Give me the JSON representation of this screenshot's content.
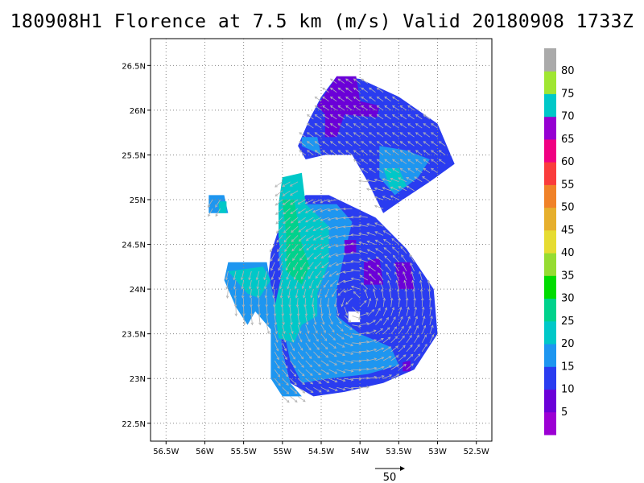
{
  "title": "180908H1 Florence at 7.5 km (m/s) Valid 20180908 1733Z",
  "chart_data": {
    "type": "heatmap",
    "title": "180908H1 Florence at 7.5 km (m/s) Valid 20180908 1733Z",
    "xlim": [
      -56.7,
      -52.3
    ],
    "ylim": [
      22.3,
      26.8
    ],
    "grid": true,
    "x_ticks": [
      {
        "value": -56.5,
        "label": "56.5W"
      },
      {
        "value": -56.0,
        "label": "56W"
      },
      {
        "value": -55.5,
        "label": "55.5W"
      },
      {
        "value": -55.0,
        "label": "55W"
      },
      {
        "value": -54.5,
        "label": "54.5W"
      },
      {
        "value": -54.0,
        "label": "54W"
      },
      {
        "value": -53.5,
        "label": "53.5W"
      },
      {
        "value": -53.0,
        "label": "53W"
      },
      {
        "value": -52.5,
        "label": "52.5W"
      }
    ],
    "y_ticks": [
      {
        "value": 22.5,
        "label": "22.5N"
      },
      {
        "value": 23.0,
        "label": "23N"
      },
      {
        "value": 23.5,
        "label": "23.5N"
      },
      {
        "value": 24.0,
        "label": "24N"
      },
      {
        "value": 24.5,
        "label": "24.5N"
      },
      {
        "value": 25.0,
        "label": "25N"
      },
      {
        "value": 25.5,
        "label": "25.5N"
      },
      {
        "value": 26.0,
        "label": "26N"
      },
      {
        "value": 26.5,
        "label": "26.5N"
      }
    ],
    "colorbar": {
      "colors": [
        "#9c00d4",
        "#6b00d8",
        "#2a3cf0",
        "#1e96f0",
        "#00c8c8",
        "#00d28c",
        "#00dc00",
        "#96dc32",
        "#e6dc32",
        "#e6af2d",
        "#f08228",
        "#fa3c3c",
        "#f00082",
        "#9600d2",
        "#00c8c8",
        "#a0e632",
        "#aaaaaa"
      ],
      "labels": [
        "5",
        "10",
        "15",
        "20",
        "25",
        "30",
        "35",
        "40",
        "45",
        "50",
        "55",
        "60",
        "65",
        "70",
        "75",
        "80"
      ]
    },
    "regions": [
      {
        "name": "north-band",
        "fill": "#2a3cf0",
        "poly": [
          [
            -54.5,
            26.15
          ],
          [
            -54.3,
            26.38
          ],
          [
            -54.0,
            26.35
          ],
          [
            -53.5,
            26.15
          ],
          [
            -53.0,
            25.85
          ],
          [
            -52.78,
            25.4
          ],
          [
            -53.1,
            25.2
          ],
          [
            -53.45,
            25.0
          ],
          [
            -53.7,
            24.85
          ],
          [
            -53.9,
            25.2
          ],
          [
            -54.1,
            25.5
          ],
          [
            -54.45,
            25.5
          ],
          [
            -54.7,
            25.45
          ],
          [
            -54.8,
            25.6
          ],
          [
            -54.65,
            25.9
          ]
        ]
      },
      {
        "name": "north-band-purple",
        "fill": "#6b00d8",
        "poly": [
          [
            -54.3,
            26.38
          ],
          [
            -54.05,
            26.38
          ],
          [
            -54.0,
            26.1
          ],
          [
            -53.75,
            26.05
          ],
          [
            -53.78,
            25.92
          ],
          [
            -54.2,
            25.95
          ],
          [
            -54.3,
            25.7
          ],
          [
            -54.45,
            25.7
          ],
          [
            -54.45,
            25.95
          ],
          [
            -54.55,
            26.05
          ]
        ]
      },
      {
        "name": "north-band-lightblue",
        "fill": "#1e96f0",
        "poly": [
          [
            -53.75,
            25.6
          ],
          [
            -53.4,
            25.55
          ],
          [
            -53.1,
            25.45
          ],
          [
            -53.25,
            25.25
          ],
          [
            -53.55,
            25.05
          ],
          [
            -53.75,
            25.25
          ]
        ]
      },
      {
        "name": "north-band-teal",
        "fill": "#00c8c8",
        "poly": [
          [
            -53.7,
            25.35
          ],
          [
            -53.5,
            25.35
          ],
          [
            -53.4,
            25.15
          ],
          [
            -53.6,
            25.1
          ]
        ]
      },
      {
        "name": "north-band-west-blue",
        "fill": "#1e96f0",
        "poly": [
          [
            -54.75,
            25.6
          ],
          [
            -54.5,
            25.5
          ],
          [
            -54.55,
            25.7
          ],
          [
            -54.75,
            25.7
          ]
        ]
      },
      {
        "name": "small-western-patch",
        "fill": "#1e96f0",
        "poly": [
          [
            -55.95,
            25.05
          ],
          [
            -55.75,
            25.05
          ],
          [
            -55.7,
            24.85
          ],
          [
            -55.95,
            24.85
          ]
        ]
      },
      {
        "name": "small-western-teal",
        "fill": "#00c8c8",
        "poly": [
          [
            -55.82,
            24.98
          ],
          [
            -55.72,
            24.98
          ],
          [
            -55.72,
            24.85
          ],
          [
            -55.82,
            24.85
          ]
        ]
      },
      {
        "name": "main-eyewall",
        "fill": "#2a3cf0",
        "poly": [
          [
            -54.4,
            25.05
          ],
          [
            -53.8,
            24.8
          ],
          [
            -53.4,
            24.45
          ],
          [
            -53.05,
            24.0
          ],
          [
            -53.0,
            23.5
          ],
          [
            -53.3,
            23.1
          ],
          [
            -53.7,
            22.95
          ],
          [
            -54.2,
            22.85
          ],
          [
            -54.6,
            22.8
          ],
          [
            -54.9,
            22.95
          ],
          [
            -55.0,
            23.3
          ],
          [
            -55.05,
            23.7
          ],
          [
            -55.2,
            24.0
          ],
          [
            -55.15,
            24.4
          ],
          [
            -55.0,
            24.8
          ],
          [
            -54.7,
            25.05
          ]
        ]
      },
      {
        "name": "west-arm-lightblue",
        "fill": "#1e96f0",
        "poly": [
          [
            -55.7,
            24.3
          ],
          [
            -55.2,
            24.3
          ],
          [
            -55.15,
            24.05
          ],
          [
            -55.05,
            23.7
          ],
          [
            -55.0,
            23.3
          ],
          [
            -54.9,
            22.95
          ],
          [
            -54.75,
            22.8
          ],
          [
            -55.0,
            22.8
          ],
          [
            -55.15,
            23.0
          ],
          [
            -55.15,
            23.55
          ],
          [
            -55.35,
            23.75
          ],
          [
            -55.45,
            23.6
          ],
          [
            -55.6,
            23.8
          ],
          [
            -55.75,
            24.1
          ]
        ]
      },
      {
        "name": "eyewall-lightblue",
        "fill": "#1e96f0",
        "poly": [
          [
            -54.75,
            24.95
          ],
          [
            -54.3,
            24.95
          ],
          [
            -54.1,
            24.75
          ],
          [
            -54.2,
            24.4
          ],
          [
            -54.3,
            24.0
          ],
          [
            -54.3,
            23.7
          ],
          [
            -54.0,
            23.5
          ],
          [
            -53.6,
            23.35
          ],
          [
            -53.5,
            23.15
          ],
          [
            -53.9,
            23.05
          ],
          [
            -54.4,
            23.0
          ],
          [
            -54.75,
            22.95
          ],
          [
            -54.9,
            23.2
          ],
          [
            -55.0,
            23.6
          ],
          [
            -55.0,
            24.0
          ],
          [
            -55.05,
            24.4
          ],
          [
            -54.95,
            24.75
          ]
        ]
      },
      {
        "name": "teal-arc",
        "fill": "#00c8c8",
        "poly": [
          [
            -55.0,
            25.25
          ],
          [
            -54.75,
            25.3
          ],
          [
            -54.7,
            24.95
          ],
          [
            -54.4,
            24.7
          ],
          [
            -54.4,
            24.3
          ],
          [
            -54.55,
            23.95
          ],
          [
            -54.55,
            23.7
          ],
          [
            -54.75,
            23.6
          ],
          [
            -54.85,
            23.4
          ],
          [
            -55.05,
            23.45
          ],
          [
            -55.1,
            23.8
          ],
          [
            -55.0,
            24.2
          ],
          [
            -55.05,
            24.6
          ],
          [
            -55.05,
            24.95
          ]
        ]
      },
      {
        "name": "teal-west",
        "fill": "#00c8c8",
        "poly": [
          [
            -55.7,
            24.2
          ],
          [
            -55.25,
            24.25
          ],
          [
            -55.15,
            24.1
          ],
          [
            -55.3,
            23.9
          ],
          [
            -55.45,
            23.95
          ],
          [
            -55.55,
            24.05
          ]
        ]
      },
      {
        "name": "green-core",
        "fill": "#00d28c",
        "poly": [
          [
            -55.0,
            25.0
          ],
          [
            -54.85,
            25.0
          ],
          [
            -54.8,
            24.75
          ],
          [
            -54.75,
            24.5
          ],
          [
            -54.65,
            24.25
          ],
          [
            -54.75,
            24.05
          ],
          [
            -54.95,
            24.2
          ],
          [
            -54.95,
            24.6
          ]
        ]
      },
      {
        "name": "purple-spot-a",
        "fill": "#6b00d8",
        "poly": [
          [
            -54.2,
            24.55
          ],
          [
            -54.05,
            24.55
          ],
          [
            -54.05,
            24.4
          ],
          [
            -54.2,
            24.4
          ]
        ]
      },
      {
        "name": "purple-spot-b",
        "fill": "#6b00d8",
        "poly": [
          [
            -53.95,
            24.3
          ],
          [
            -53.75,
            24.35
          ],
          [
            -53.7,
            24.05
          ],
          [
            -53.95,
            24.05
          ]
        ]
      },
      {
        "name": "purple-spot-c",
        "fill": "#6b00d8",
        "poly": [
          [
            -53.55,
            24.3
          ],
          [
            -53.35,
            24.3
          ],
          [
            -53.3,
            24.0
          ],
          [
            -53.5,
            24.0
          ]
        ]
      },
      {
        "name": "eye-hole",
        "fill": "#ffffff",
        "poly": [
          [
            -54.15,
            23.75
          ],
          [
            -54.0,
            23.75
          ],
          [
            -54.0,
            23.63
          ],
          [
            -54.15,
            23.63
          ]
        ]
      },
      {
        "name": "purple-spot-d",
        "fill": "#6b00d8",
        "poly": [
          [
            -53.45,
            23.18
          ],
          [
            -53.35,
            23.2
          ],
          [
            -53.35,
            23.08
          ],
          [
            -53.45,
            23.08
          ]
        ]
      }
    ],
    "reference_vector": {
      "label": "50",
      "value": 50
    }
  }
}
